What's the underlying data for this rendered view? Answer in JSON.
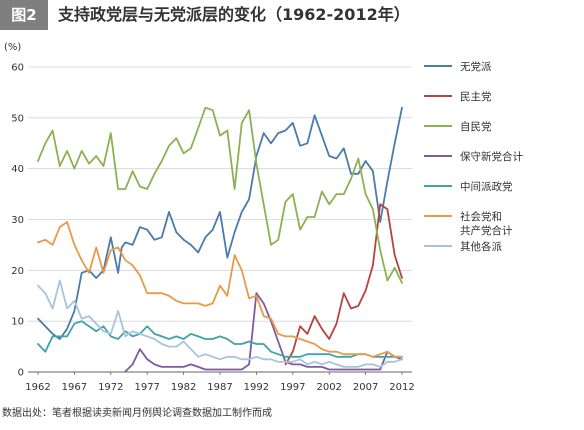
{
  "figure": {
    "label": "图2",
    "title": "支持政党层与无党派层的变化（1962-2012年）",
    "source": "数据出处：笔者根据读卖新闻月例舆论调查数据加工制作而成"
  },
  "chart_data": {
    "type": "line",
    "title": "支持政党层与无党派层的变化（1962-2012年）",
    "ylabel": "(%)",
    "xlabel": "",
    "ylim": [
      0,
      60
    ],
    "xlim": [
      1962,
      2012
    ],
    "y_ticks": [
      "0",
      "10",
      "20",
      "30",
      "40",
      "50",
      "60"
    ],
    "x_ticks": [
      "1962",
      "1967",
      "1972",
      "1977",
      "1982",
      "1987",
      "1992",
      "1997",
      "2002",
      "2007",
      "2012"
    ],
    "x_tick_values": [
      1962,
      1967,
      1972,
      1977,
      1982,
      1987,
      1992,
      1997,
      2002,
      2007,
      2012
    ],
    "grid": "horizontal",
    "legend_position": "right",
    "series": [
      {
        "name": "无党派",
        "color": "#4a7bab",
        "x": [
          1962,
          1963,
          1964,
          1965,
          1966,
          1967,
          1968,
          1969,
          1970,
          1971,
          1972,
          1973,
          1973.5,
          1974,
          1975,
          1976,
          1977,
          1978,
          1979,
          1980,
          1981,
          1982,
          1983,
          1984,
          1985,
          1986,
          1987,
          1988,
          1989,
          1990,
          1991,
          1992,
          1993,
          1994,
          1995,
          1996,
          1997,
          1998,
          1999,
          2000,
          2001,
          2002,
          2003,
          2004,
          2005,
          2006,
          2007,
          2008,
          2009,
          2010,
          2011,
          2012
        ],
        "values": [
          10.5,
          9,
          7.5,
          6.5,
          8.5,
          12,
          19.5,
          20,
          18.5,
          20,
          26.5,
          19.5,
          24.5,
          25.5,
          25,
          28.5,
          28,
          26,
          26.5,
          31.5,
          27.5,
          26,
          25,
          23.5,
          26.5,
          28,
          31.5,
          22.5,
          27.5,
          31.5,
          34,
          42.5,
          47,
          45,
          47,
          47.5,
          49,
          44.5,
          45,
          50.5,
          46.5,
          42.5,
          42,
          44,
          39,
          39,
          41.5,
          39.5,
          29.5,
          37.5,
          45,
          52
        ]
      },
      {
        "name": "民主党",
        "color": "#b84240",
        "x": [
          1996,
          1997,
          1998,
          1999,
          2000,
          2001,
          2002,
          2003,
          2004,
          2005,
          2006,
          2007,
          2008,
          2009,
          2010,
          2011,
          2012
        ],
        "values": [
          1.5,
          4,
          9,
          7.5,
          11,
          8.5,
          6.5,
          9.5,
          15.5,
          12.5,
          13,
          16,
          21,
          33,
          32,
          23,
          18.5
        ]
      },
      {
        "name": "自民党",
        "color": "#8cb152",
        "x": [
          1962,
          1963,
          1964,
          1965,
          1966,
          1967,
          1968,
          1969,
          1970,
          1971,
          1972,
          1973,
          1974,
          1975,
          1976,
          1977,
          1978,
          1979,
          1980,
          1981,
          1982,
          1983,
          1984,
          1985,
          1986,
          1987,
          1988,
          1989,
          1990,
          1991,
          1992,
          1993,
          1994,
          1995,
          1996,
          1997,
          1998,
          1999,
          2000,
          2001,
          2002,
          2003,
          2004,
          2005,
          2006,
          2007,
          2008,
          2009,
          2010,
          2011,
          2012
        ],
        "values": [
          41.5,
          45,
          47.5,
          40.5,
          43.5,
          40,
          43.5,
          41,
          42.5,
          40.5,
          47,
          36,
          36,
          39.5,
          36.5,
          36,
          39,
          41.5,
          44.5,
          46,
          43,
          44,
          48,
          52,
          51.5,
          46.5,
          47.5,
          36,
          49,
          51.5,
          41,
          33,
          25,
          26,
          33.5,
          35,
          28,
          30.5,
          30.5,
          35.5,
          33,
          35,
          35,
          38,
          42,
          35,
          32,
          24,
          18,
          20.5,
          17.5
        ]
      },
      {
        "name": "保守新党合计",
        "color": "#7d5aa3",
        "x": [
          1974,
          1975,
          1976,
          1977,
          1978,
          1979,
          1980,
          1981,
          1982,
          1983,
          1984,
          1985,
          1986,
          1987,
          1988,
          1989,
          1990,
          1991,
          1992,
          1993,
          1994,
          1995,
          1996,
          1997,
          1998,
          1999,
          2000,
          2001,
          2002,
          2003,
          2004,
          2005,
          2006,
          2007,
          2008,
          2009,
          2010,
          2011,
          2012
        ],
        "values": [
          0.1,
          1.5,
          4.5,
          2.5,
          1.5,
          1,
          1,
          1,
          1,
          1.5,
          1,
          0.5,
          0.5,
          0.5,
          0.5,
          0.5,
          0.5,
          1.5,
          15.5,
          13.5,
          10,
          6,
          2,
          1.5,
          1.5,
          1,
          1,
          1,
          0.5,
          0.5,
          0.5,
          0.5,
          0.5,
          0.5,
          0.5,
          0.5,
          4,
          3,
          2.5
        ]
      },
      {
        "name": "中间派政党",
        "color": "#3fa3a8",
        "x": [
          1962,
          1963,
          1964,
          1965,
          1966,
          1967,
          1968,
          1969,
          1970,
          1971,
          1972,
          1973,
          1974,
          1975,
          1976,
          1977,
          1978,
          1979,
          1980,
          1981,
          1982,
          1983,
          1984,
          1985,
          1986,
          1987,
          1988,
          1989,
          1990,
          1991,
          1992,
          1993,
          1994,
          1995,
          1996,
          1997,
          1998,
          1999,
          2000,
          2001,
          2002,
          2003,
          2004,
          2005,
          2006,
          2007,
          2008,
          2009,
          2010,
          2011,
          2012
        ],
        "values": [
          5.5,
          4,
          7,
          7,
          7,
          9.5,
          10,
          9,
          8,
          9,
          7,
          6.5,
          8,
          7,
          7.5,
          9,
          7.5,
          7,
          6.5,
          7,
          6.5,
          7.5,
          7,
          6.5,
          6.5,
          7,
          6.5,
          5.5,
          5.5,
          6,
          5.5,
          5.5,
          4,
          3.5,
          3,
          3,
          3,
          3.5,
          3.5,
          3.5,
          3.5,
          3,
          3,
          3,
          3.5,
          3.5,
          3,
          3,
          3,
          3,
          3
        ]
      },
      {
        "name": "社会党和共产党合计",
        "color": "#e89a48",
        "legend_lines": [
          "社会党和",
          "共产党合计"
        ],
        "x": [
          1962,
          1963,
          1964,
          1965,
          1966,
          1967,
          1968,
          1969,
          1970,
          1971,
          1972,
          1973,
          1974,
          1975,
          1976,
          1977,
          1978,
          1979,
          1980,
          1981,
          1982,
          1983,
          1984,
          1985,
          1986,
          1987,
          1988,
          1989,
          1990,
          1991,
          1992,
          1993,
          1994,
          1995,
          1996,
          1997,
          1998,
          1999,
          2000,
          2001,
          2002,
          2003,
          2004,
          2005,
          2006,
          2007,
          2008,
          2009,
          2010,
          2011,
          2012
        ],
        "values": [
          25.5,
          26,
          25,
          28.5,
          29.5,
          25,
          22,
          19.5,
          24.5,
          19.5,
          24,
          24.5,
          22,
          21,
          19,
          15.5,
          15.5,
          15.5,
          15,
          14,
          13.5,
          13.5,
          13.5,
          13,
          13.5,
          17,
          15,
          23,
          20,
          14.5,
          15,
          11,
          10.5,
          7.5,
          7,
          7,
          6.5,
          6,
          5.5,
          4.5,
          4,
          4,
          3.5,
          3.5,
          3.5,
          3.5,
          3,
          3.5,
          4,
          3,
          3
        ]
      },
      {
        "name": "其他各派",
        "color": "#a8c4dc",
        "x": [
          1962,
          1963,
          1964,
          1965,
          1966,
          1967,
          1968,
          1969,
          1970,
          1971,
          1972,
          1973,
          1974,
          1975,
          1976,
          1977,
          1978,
          1979,
          1980,
          1981,
          1982,
          1983,
          1984,
          1985,
          1986,
          1987,
          1988,
          1989,
          1990,
          1991,
          1992,
          1993,
          1994,
          1995,
          1996,
          1997,
          1998,
          1999,
          2000,
          2001,
          2002,
          2003,
          2004,
          2005,
          2006,
          2007,
          2008,
          2009,
          2010,
          2011,
          2012
        ],
        "values": [
          17,
          15.5,
          12.5,
          18,
          12.5,
          14,
          10.5,
          11,
          9.5,
          8,
          7.5,
          12,
          7,
          8,
          7.5,
          7,
          6.5,
          5.5,
          5,
          5,
          6,
          4.5,
          3,
          3.5,
          3,
          2.5,
          3,
          3,
          2.5,
          2.5,
          3,
          2.5,
          2.5,
          2,
          2,
          2,
          2.5,
          1.5,
          2,
          1.5,
          2,
          1.5,
          1,
          1,
          1,
          1.5,
          1.5,
          1,
          2,
          2,
          2.5
        ]
      }
    ]
  }
}
